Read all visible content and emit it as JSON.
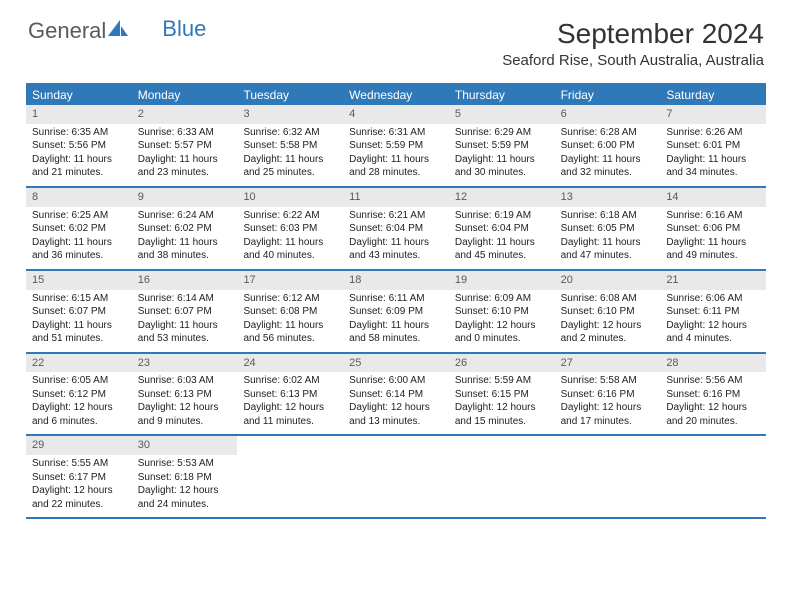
{
  "logo": {
    "text1": "General",
    "text2": "Blue"
  },
  "title": "September 2024",
  "location": "Seaford Rise, South Australia, Australia",
  "colors": {
    "accent": "#2f79b9",
    "band": "#e9e9e9",
    "text": "#333333",
    "logo_gray": "#5a5a5a"
  },
  "dayHeaders": [
    "Sunday",
    "Monday",
    "Tuesday",
    "Wednesday",
    "Thursday",
    "Friday",
    "Saturday"
  ],
  "weeks": [
    [
      {
        "num": "1",
        "sunrise": "Sunrise: 6:35 AM",
        "sunset": "Sunset: 5:56 PM",
        "daylight": "Daylight: 11 hours and 21 minutes."
      },
      {
        "num": "2",
        "sunrise": "Sunrise: 6:33 AM",
        "sunset": "Sunset: 5:57 PM",
        "daylight": "Daylight: 11 hours and 23 minutes."
      },
      {
        "num": "3",
        "sunrise": "Sunrise: 6:32 AM",
        "sunset": "Sunset: 5:58 PM",
        "daylight": "Daylight: 11 hours and 25 minutes."
      },
      {
        "num": "4",
        "sunrise": "Sunrise: 6:31 AM",
        "sunset": "Sunset: 5:59 PM",
        "daylight": "Daylight: 11 hours and 28 minutes."
      },
      {
        "num": "5",
        "sunrise": "Sunrise: 6:29 AM",
        "sunset": "Sunset: 5:59 PM",
        "daylight": "Daylight: 11 hours and 30 minutes."
      },
      {
        "num": "6",
        "sunrise": "Sunrise: 6:28 AM",
        "sunset": "Sunset: 6:00 PM",
        "daylight": "Daylight: 11 hours and 32 minutes."
      },
      {
        "num": "7",
        "sunrise": "Sunrise: 6:26 AM",
        "sunset": "Sunset: 6:01 PM",
        "daylight": "Daylight: 11 hours and 34 minutes."
      }
    ],
    [
      {
        "num": "8",
        "sunrise": "Sunrise: 6:25 AM",
        "sunset": "Sunset: 6:02 PM",
        "daylight": "Daylight: 11 hours and 36 minutes."
      },
      {
        "num": "9",
        "sunrise": "Sunrise: 6:24 AM",
        "sunset": "Sunset: 6:02 PM",
        "daylight": "Daylight: 11 hours and 38 minutes."
      },
      {
        "num": "10",
        "sunrise": "Sunrise: 6:22 AM",
        "sunset": "Sunset: 6:03 PM",
        "daylight": "Daylight: 11 hours and 40 minutes."
      },
      {
        "num": "11",
        "sunrise": "Sunrise: 6:21 AM",
        "sunset": "Sunset: 6:04 PM",
        "daylight": "Daylight: 11 hours and 43 minutes."
      },
      {
        "num": "12",
        "sunrise": "Sunrise: 6:19 AM",
        "sunset": "Sunset: 6:04 PM",
        "daylight": "Daylight: 11 hours and 45 minutes."
      },
      {
        "num": "13",
        "sunrise": "Sunrise: 6:18 AM",
        "sunset": "Sunset: 6:05 PM",
        "daylight": "Daylight: 11 hours and 47 minutes."
      },
      {
        "num": "14",
        "sunrise": "Sunrise: 6:16 AM",
        "sunset": "Sunset: 6:06 PM",
        "daylight": "Daylight: 11 hours and 49 minutes."
      }
    ],
    [
      {
        "num": "15",
        "sunrise": "Sunrise: 6:15 AM",
        "sunset": "Sunset: 6:07 PM",
        "daylight": "Daylight: 11 hours and 51 minutes."
      },
      {
        "num": "16",
        "sunrise": "Sunrise: 6:14 AM",
        "sunset": "Sunset: 6:07 PM",
        "daylight": "Daylight: 11 hours and 53 minutes."
      },
      {
        "num": "17",
        "sunrise": "Sunrise: 6:12 AM",
        "sunset": "Sunset: 6:08 PM",
        "daylight": "Daylight: 11 hours and 56 minutes."
      },
      {
        "num": "18",
        "sunrise": "Sunrise: 6:11 AM",
        "sunset": "Sunset: 6:09 PM",
        "daylight": "Daylight: 11 hours and 58 minutes."
      },
      {
        "num": "19",
        "sunrise": "Sunrise: 6:09 AM",
        "sunset": "Sunset: 6:10 PM",
        "daylight": "Daylight: 12 hours and 0 minutes."
      },
      {
        "num": "20",
        "sunrise": "Sunrise: 6:08 AM",
        "sunset": "Sunset: 6:10 PM",
        "daylight": "Daylight: 12 hours and 2 minutes."
      },
      {
        "num": "21",
        "sunrise": "Sunrise: 6:06 AM",
        "sunset": "Sunset: 6:11 PM",
        "daylight": "Daylight: 12 hours and 4 minutes."
      }
    ],
    [
      {
        "num": "22",
        "sunrise": "Sunrise: 6:05 AM",
        "sunset": "Sunset: 6:12 PM",
        "daylight": "Daylight: 12 hours and 6 minutes."
      },
      {
        "num": "23",
        "sunrise": "Sunrise: 6:03 AM",
        "sunset": "Sunset: 6:13 PM",
        "daylight": "Daylight: 12 hours and 9 minutes."
      },
      {
        "num": "24",
        "sunrise": "Sunrise: 6:02 AM",
        "sunset": "Sunset: 6:13 PM",
        "daylight": "Daylight: 12 hours and 11 minutes."
      },
      {
        "num": "25",
        "sunrise": "Sunrise: 6:00 AM",
        "sunset": "Sunset: 6:14 PM",
        "daylight": "Daylight: 12 hours and 13 minutes."
      },
      {
        "num": "26",
        "sunrise": "Sunrise: 5:59 AM",
        "sunset": "Sunset: 6:15 PM",
        "daylight": "Daylight: 12 hours and 15 minutes."
      },
      {
        "num": "27",
        "sunrise": "Sunrise: 5:58 AM",
        "sunset": "Sunset: 6:16 PM",
        "daylight": "Daylight: 12 hours and 17 minutes."
      },
      {
        "num": "28",
        "sunrise": "Sunrise: 5:56 AM",
        "sunset": "Sunset: 6:16 PM",
        "daylight": "Daylight: 12 hours and 20 minutes."
      }
    ],
    [
      {
        "num": "29",
        "sunrise": "Sunrise: 5:55 AM",
        "sunset": "Sunset: 6:17 PM",
        "daylight": "Daylight: 12 hours and 22 minutes."
      },
      {
        "num": "30",
        "sunrise": "Sunrise: 5:53 AM",
        "sunset": "Sunset: 6:18 PM",
        "daylight": "Daylight: 12 hours and 24 minutes."
      },
      null,
      null,
      null,
      null,
      null
    ]
  ]
}
